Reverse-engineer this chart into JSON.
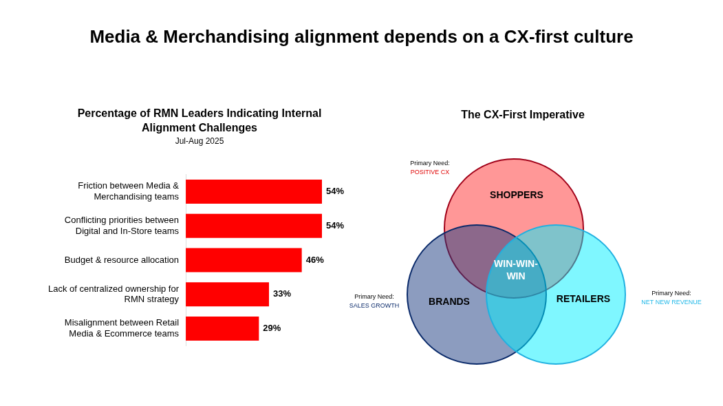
{
  "chart_data": [
    {
      "type": "bar",
      "orientation": "horizontal",
      "title": "Media & Merchandising alignment depends on a CX-first culture",
      "subtitle": "Percentage of RMN Leaders Indicating Internal Alignment Challenges",
      "annotations": [
        "Jul-Aug 2025"
      ],
      "categories": [
        "Friction between Media & Merchandising teams",
        "Conflicting priorities between Digital and In-Store teams",
        "Budget & resource allocation",
        "Lack of centralized ownership for RMN strategy",
        "Misalignment between Retail Media & Ecommerce teams"
      ],
      "values": [
        54,
        54,
        46,
        33,
        29
      ],
      "color": "#ff0000",
      "tick_labels": "y",
      "value_labels": [
        "54%",
        "54%",
        "46%",
        "33%",
        "29%"
      ]
    },
    {
      "type": "other",
      "title": "The CX-First Imperative",
      "annotations": [
        "Primary Need:",
        "POSITIVE CX",
        "Primary Need:",
        "SALES GROWTH",
        "Primary Need:",
        "NET NEW REVENUE",
        "SHOPPERS",
        "BRANDS",
        "RETAILERS",
        "WIN-WIN-WIN"
      ]
    }
  ]
}
